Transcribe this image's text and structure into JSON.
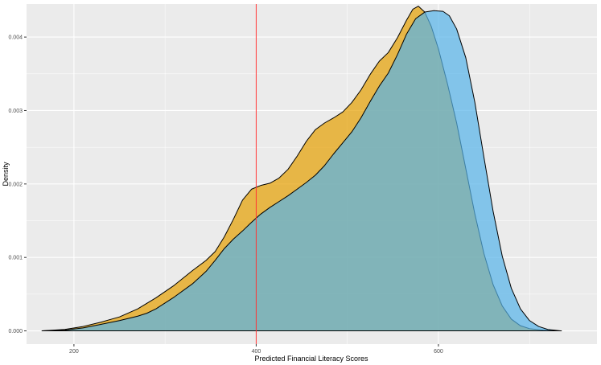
{
  "chart_data": {
    "type": "area",
    "title": "",
    "xlabel": "Predicted Financial Literacy Scores",
    "ylabel": "Density",
    "xlim": [
      148,
      774
    ],
    "ylim": [
      -0.00018,
      0.00445
    ],
    "x_ticks": [
      {
        "value": 200,
        "label": "200"
      },
      {
        "value": 400,
        "label": "400"
      },
      {
        "value": 600,
        "label": "600"
      }
    ],
    "x_minor_ticks": [
      300,
      500,
      700
    ],
    "y_ticks": [
      {
        "value": 0.0,
        "label": "0.000"
      },
      {
        "value": 0.001,
        "label": "0.001"
      },
      {
        "value": 0.002,
        "label": "0.002"
      },
      {
        "value": 0.003,
        "label": "0.003"
      },
      {
        "value": 0.004,
        "label": "0.004"
      }
    ],
    "y_minor_ticks": [
      0.0005,
      0.0015,
      0.0025,
      0.0035
    ],
    "grid": true,
    "legend": "none",
    "reference_line": {
      "x": 400,
      "color": "#ff3333"
    },
    "series": [
      {
        "fill": "#e69f00",
        "outline": "#000000",
        "points": [
          [
            165,
            0.0
          ],
          [
            190,
            2e-05
          ],
          [
            210,
            6e-05
          ],
          [
            230,
            0.00012
          ],
          [
            250,
            0.00019
          ],
          [
            270,
            0.0003
          ],
          [
            290,
            0.00045
          ],
          [
            310,
            0.00062
          ],
          [
            330,
            0.00082
          ],
          [
            345,
            0.00096
          ],
          [
            355,
            0.00108
          ],
          [
            365,
            0.00128
          ],
          [
            375,
            0.00152
          ],
          [
            385,
            0.00178
          ],
          [
            395,
            0.00193
          ],
          [
            405,
            0.00198
          ],
          [
            415,
            0.00201
          ],
          [
            425,
            0.00208
          ],
          [
            435,
            0.0022
          ],
          [
            445,
            0.00238
          ],
          [
            455,
            0.00258
          ],
          [
            465,
            0.00274
          ],
          [
            475,
            0.00283
          ],
          [
            485,
            0.0029
          ],
          [
            495,
            0.00298
          ],
          [
            505,
            0.00311
          ],
          [
            515,
            0.00328
          ],
          [
            525,
            0.00349
          ],
          [
            535,
            0.00367
          ],
          [
            545,
            0.00379
          ],
          [
            555,
            0.00399
          ],
          [
            565,
            0.00423
          ],
          [
            572,
            0.00438
          ],
          [
            578,
            0.00442
          ],
          [
            585,
            0.00434
          ],
          [
            592,
            0.00415
          ],
          [
            600,
            0.00384
          ],
          [
            610,
            0.00336
          ],
          [
            620,
            0.00283
          ],
          [
            630,
            0.00221
          ],
          [
            640,
            0.00159
          ],
          [
            650,
            0.00105
          ],
          [
            660,
            0.00063
          ],
          [
            670,
            0.00034
          ],
          [
            680,
            0.00016
          ],
          [
            690,
            7e-05
          ],
          [
            700,
            3e-05
          ],
          [
            715,
            1e-05
          ],
          [
            730,
            0.0
          ]
        ]
      },
      {
        "fill": "#56b4e9",
        "outline": "#000000",
        "points": [
          [
            165,
            0.0
          ],
          [
            190,
            1e-05
          ],
          [
            210,
            4e-05
          ],
          [
            230,
            9e-05
          ],
          [
            250,
            0.00014
          ],
          [
            270,
            0.0002
          ],
          [
            280,
            0.00024
          ],
          [
            290,
            0.0003
          ],
          [
            310,
            0.00046
          ],
          [
            330,
            0.00064
          ],
          [
            345,
            0.00081
          ],
          [
            355,
            0.00096
          ],
          [
            365,
            0.00112
          ],
          [
            375,
            0.00125
          ],
          [
            385,
            0.00136
          ],
          [
            395,
            0.00148
          ],
          [
            405,
            0.00159
          ],
          [
            415,
            0.00168
          ],
          [
            425,
            0.00176
          ],
          [
            435,
            0.00184
          ],
          [
            445,
            0.00193
          ],
          [
            455,
            0.00202
          ],
          [
            465,
            0.00212
          ],
          [
            475,
            0.00225
          ],
          [
            485,
            0.00241
          ],
          [
            495,
            0.00256
          ],
          [
            505,
            0.00271
          ],
          [
            515,
            0.0029
          ],
          [
            525,
            0.00312
          ],
          [
            535,
            0.00333
          ],
          [
            545,
            0.00351
          ],
          [
            555,
            0.00376
          ],
          [
            565,
            0.00404
          ],
          [
            575,
            0.00425
          ],
          [
            585,
            0.00434
          ],
          [
            595,
            0.00436
          ],
          [
            605,
            0.00435
          ],
          [
            612,
            0.00429
          ],
          [
            620,
            0.00411
          ],
          [
            630,
            0.00372
          ],
          [
            640,
            0.00311
          ],
          [
            650,
            0.00236
          ],
          [
            660,
            0.00163
          ],
          [
            670,
            0.00102
          ],
          [
            680,
            0.00058
          ],
          [
            690,
            0.0003
          ],
          [
            700,
            0.00014
          ],
          [
            710,
            6e-05
          ],
          [
            720,
            2e-05
          ],
          [
            735,
            0.0
          ]
        ]
      }
    ]
  }
}
